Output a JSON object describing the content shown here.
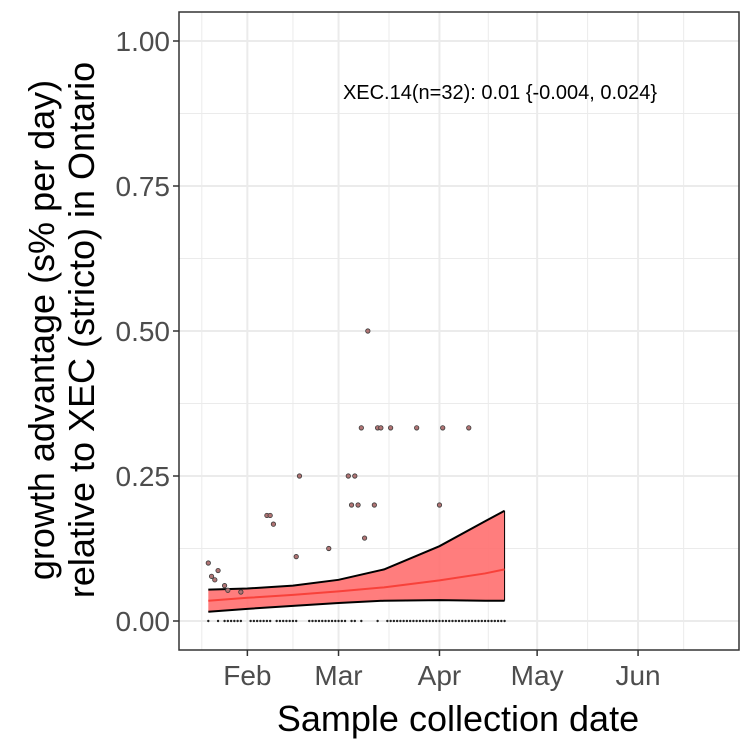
{
  "chart_data": {
    "type": "line",
    "xlabel": "Sample collection date",
    "ylabel_line1": "growth advantage (s% per day)",
    "ylabel_line2": "relative to XEC (stricto) in Ontario",
    "annotation": "XEC.14(n=32): 0.01 {-0.004, 0.024}",
    "xlim": [
      "2025-01-11",
      "2025-07-02"
    ],
    "ylim": [
      -0.05,
      1.05
    ],
    "x_ticks": [
      {
        "date": "2025-02-01",
        "label": "Feb"
      },
      {
        "date": "2025-03-01",
        "label": "Mar"
      },
      {
        "date": "2025-04-01",
        "label": "Apr"
      },
      {
        "date": "2025-05-01",
        "label": "May"
      },
      {
        "date": "2025-06-01",
        "label": "Jun"
      }
    ],
    "y_ticks": [
      {
        "value": 0.0,
        "label": "0.00"
      },
      {
        "value": 0.25,
        "label": "0.25"
      },
      {
        "value": 0.5,
        "label": "0.50"
      },
      {
        "value": 0.75,
        "label": "0.75"
      },
      {
        "value": 1.0,
        "label": "1.00"
      }
    ],
    "grid": true,
    "colors": {
      "fit_line": "#f8413a",
      "ribbon_fill": "#ff6f6f",
      "ribbon_edge": "#000000",
      "points_fill": "#b07474",
      "points_edge": "#3a3a3a",
      "grid": "#ebebeb",
      "panel_border": "#333333"
    },
    "series": [
      {
        "kind": "fit",
        "x": [
          "2025-01-20",
          "2025-02-01",
          "2025-02-15",
          "2025-03-01",
          "2025-03-15",
          "2025-04-01",
          "2025-04-15",
          "2025-04-21"
        ],
        "y": [
          0.035,
          0.04,
          0.045,
          0.051,
          0.058,
          0.07,
          0.082,
          0.089
        ],
        "lower": [
          0.016,
          0.021,
          0.026,
          0.031,
          0.035,
          0.036,
          0.035,
          0.035
        ],
        "upper": [
          0.054,
          0.056,
          0.061,
          0.071,
          0.089,
          0.129,
          0.172,
          0.19
        ]
      },
      {
        "kind": "points",
        "x": [
          "2025-01-20",
          "2025-01-21",
          "2025-01-22",
          "2025-01-23",
          "2025-01-25",
          "2025-01-26",
          "2025-01-30",
          "2025-02-07",
          "2025-02-08",
          "2025-02-09",
          "2025-02-16",
          "2025-02-17",
          "2025-02-26",
          "2025-03-04",
          "2025-03-05",
          "2025-03-06",
          "2025-03-07",
          "2025-03-08",
          "2025-03-09",
          "2025-03-10",
          "2025-03-12",
          "2025-03-13",
          "2025-03-14",
          "2025-03-17",
          "2025-03-25",
          "2025-04-01",
          "2025-04-02",
          "2025-04-10"
        ],
        "y": [
          0.1,
          0.077,
          0.071,
          0.087,
          0.061,
          0.053,
          0.05,
          0.182,
          0.182,
          0.167,
          0.111,
          0.25,
          0.125,
          0.25,
          0.2,
          0.25,
          0.2,
          0.333,
          0.143,
          0.5,
          0.2,
          0.333,
          0.333,
          0.333,
          0.333,
          0.2,
          0.333,
          0.333
        ]
      }
    ],
    "rug_x": [
      "2025-01-20",
      "2025-01-23",
      "2025-01-25",
      "2025-01-26",
      "2025-01-27",
      "2025-01-28",
      "2025-01-29",
      "2025-01-30",
      "2025-02-02",
      "2025-02-03",
      "2025-02-04",
      "2025-02-05",
      "2025-02-06",
      "2025-02-07",
      "2025-02-08",
      "2025-02-10",
      "2025-02-11",
      "2025-02-12",
      "2025-02-13",
      "2025-02-14",
      "2025-02-15",
      "2025-02-16",
      "2025-02-20",
      "2025-02-21",
      "2025-02-22",
      "2025-02-23",
      "2025-02-24",
      "2025-02-25",
      "2025-02-26",
      "2025-02-27",
      "2025-02-28",
      "2025-03-01",
      "2025-03-02",
      "2025-03-03",
      "2025-03-05",
      "2025-03-06",
      "2025-03-08",
      "2025-03-13",
      "2025-03-16",
      "2025-03-17",
      "2025-03-18",
      "2025-03-19",
      "2025-03-20",
      "2025-03-21",
      "2025-03-22",
      "2025-03-23",
      "2025-03-24",
      "2025-03-25",
      "2025-03-26",
      "2025-03-27",
      "2025-03-28",
      "2025-03-29",
      "2025-03-30",
      "2025-03-31",
      "2025-04-01",
      "2025-04-02",
      "2025-04-03",
      "2025-04-04",
      "2025-04-05",
      "2025-04-06",
      "2025-04-07",
      "2025-04-08",
      "2025-04-09",
      "2025-04-10",
      "2025-04-11",
      "2025-04-12",
      "2025-04-13",
      "2025-04-14",
      "2025-04-15",
      "2025-04-16",
      "2025-04-17",
      "2025-04-18",
      "2025-04-19",
      "2025-04-20",
      "2025-04-21"
    ]
  }
}
